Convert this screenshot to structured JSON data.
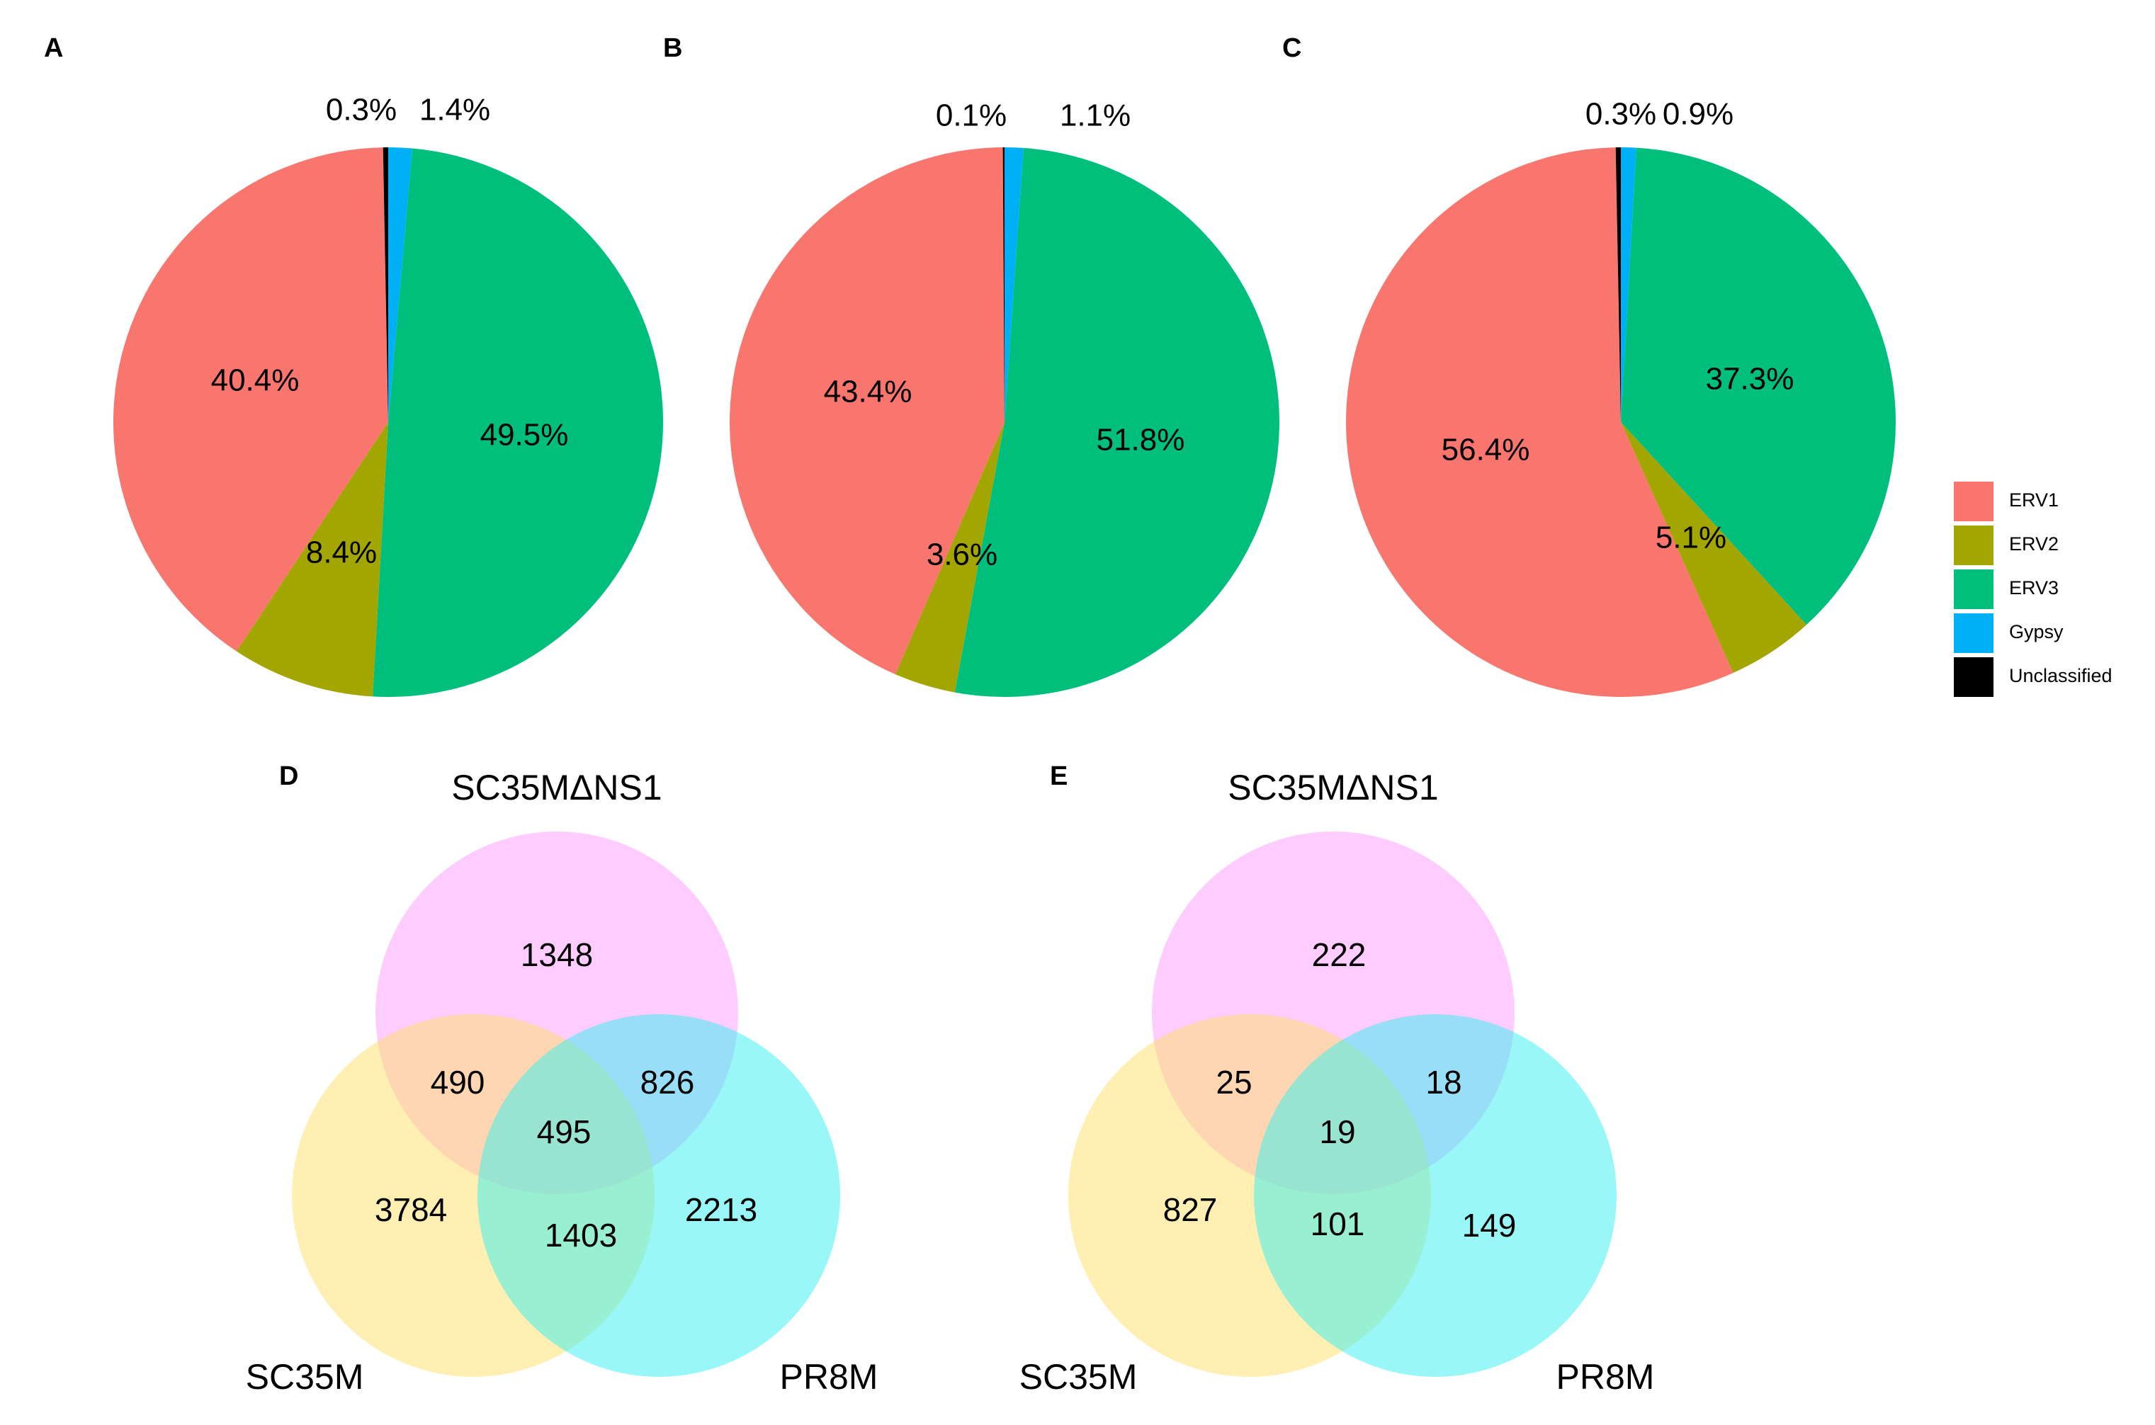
{
  "colors": {
    "ERV1": "#F8766D",
    "ERV2": "#A3A500",
    "ERV3": "#00BF7D",
    "Gypsy": "#00B0F6",
    "Unclassified": "#000000",
    "venn_a": "#FF99FF",
    "venn_b": "#FFE066",
    "venn_c": "#33F0F0"
  },
  "legend": {
    "items": [
      {
        "key": "ERV1",
        "label": "ERV1"
      },
      {
        "key": "ERV2",
        "label": "ERV2"
      },
      {
        "key": "ERV3",
        "label": "ERV3"
      },
      {
        "key": "Gypsy",
        "label": "Gypsy"
      },
      {
        "key": "Unclassified",
        "label": "Unclassified"
      }
    ]
  },
  "chart_data": [
    {
      "type": "pie",
      "panel": "A",
      "categories": [
        "ERV1",
        "ERV2",
        "ERV3",
        "Gypsy",
        "Unclassified"
      ],
      "values": [
        40.4,
        8.4,
        49.5,
        1.4,
        0.3
      ],
      "labels": [
        "40.4%",
        "8.4%",
        "49.5%",
        "1.4%",
        "0.3%"
      ]
    },
    {
      "type": "pie",
      "panel": "B",
      "categories": [
        "ERV1",
        "ERV2",
        "ERV3",
        "Gypsy",
        "Unclassified"
      ],
      "values": [
        43.4,
        3.6,
        51.8,
        1.1,
        0.1
      ],
      "labels": [
        "43.4%",
        "3.6%",
        "51.8%",
        "1.1%",
        "0.1%"
      ]
    },
    {
      "type": "pie",
      "panel": "C",
      "categories": [
        "ERV1",
        "ERV2",
        "ERV3",
        "Gypsy",
        "Unclassified"
      ],
      "values": [
        56.4,
        5.1,
        37.3,
        0.9,
        0.3
      ],
      "labels": [
        "56.4%",
        "5.1%",
        "37.3%",
        "0.9%",
        "0.3%"
      ]
    },
    {
      "type": "venn",
      "panel": "D",
      "sets": [
        "SC35MΔNS1",
        "SC35M",
        "PR8M"
      ],
      "regions": {
        "a_only": "1348",
        "b_only": "3784",
        "c_only": "2213",
        "ab": "490",
        "ac": "826",
        "bc": "1403",
        "abc": "495"
      }
    },
    {
      "type": "venn",
      "panel": "E",
      "sets": [
        "SC35MΔNS1",
        "SC35M",
        "PR8M"
      ],
      "regions": {
        "a_only": "222",
        "b_only": "827",
        "c_only": "149",
        "ab": "25",
        "ac": "18",
        "bc": "101",
        "abc": "19"
      }
    }
  ]
}
